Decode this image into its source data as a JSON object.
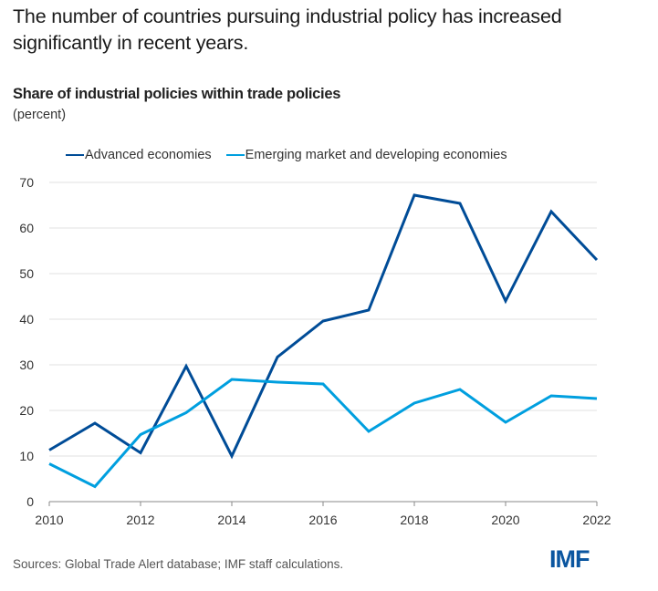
{
  "headline": "The number of countries pursuing industrial policy has increased significantly in recent years.",
  "source": "Sources: Global Trade Alert database; IMF staff calculations.",
  "logo": "IMF",
  "colors": {
    "advanced": "#004c97",
    "emde": "#009fdf",
    "logo": "#0b56a0",
    "grid": "#e8e8e8",
    "axis": "#888888"
  },
  "chart_data": {
    "type": "line",
    "title": "Share of industrial policies within trade policies",
    "subtitle": "(percent)",
    "xlabel": "",
    "ylabel": "",
    "x": [
      2010,
      2011,
      2012,
      2013,
      2014,
      2015,
      2016,
      2017,
      2018,
      2019,
      2020,
      2021,
      2022
    ],
    "xticks": [
      "2010",
      "2012",
      "2014",
      "2016",
      "2018",
      "2020",
      "2022"
    ],
    "xlim": [
      2010,
      2022
    ],
    "ylim": [
      0,
      70
    ],
    "yticks": [
      "0",
      "10",
      "20",
      "30",
      "40",
      "50",
      "60",
      "70"
    ],
    "grid": true,
    "legend_position": "top",
    "series": [
      {
        "name": "Advanced economies",
        "color": "#004c97",
        "values": [
          11.3,
          17.2,
          10.7,
          29.7,
          10.0,
          31.7,
          39.6,
          42.0,
          67.2,
          65.4,
          44.0,
          63.6,
          53.0
        ]
      },
      {
        "name": "Emerging market and developing economies",
        "color": "#009fdf",
        "values": [
          8.3,
          3.3,
          14.7,
          19.5,
          26.8,
          26.2,
          25.8,
          15.4,
          21.6,
          24.6,
          17.4,
          23.2,
          22.6
        ]
      }
    ]
  }
}
